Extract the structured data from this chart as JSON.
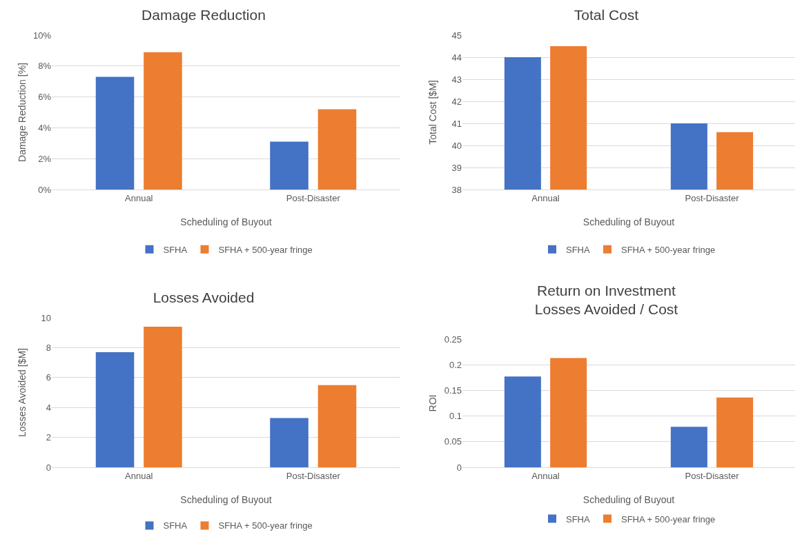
{
  "chart_data": [
    {
      "type": "bar",
      "title": "Damage Reduction",
      "xlabel": "Scheduling of Buyout",
      "ylabel": "Damage Reduction [%]",
      "categories": [
        "Annual",
        "Post-Disaster"
      ],
      "series": [
        {
          "name": "SFHA",
          "color": "#4472c4",
          "values": [
            7.3,
            3.1
          ]
        },
        {
          "name": "SFHA + 500-year fringe",
          "color": "#ed7d31",
          "values": [
            8.9,
            5.2
          ]
        }
      ],
      "ylim": [
        0,
        10
      ],
      "yticks": [
        {
          "value": 0,
          "label": "0%"
        },
        {
          "value": 2,
          "label": "2%"
        },
        {
          "value": 4,
          "label": "4%"
        },
        {
          "value": 6,
          "label": "6%"
        },
        {
          "value": 8,
          "label": "8%"
        },
        {
          "value": 10,
          "label": "10%"
        }
      ],
      "grid": "y",
      "legend": "bottom"
    },
    {
      "type": "bar",
      "title": "Total Cost",
      "xlabel": "Scheduling of Buyout",
      "ylabel": "Total Cost [$M]",
      "categories": [
        "Annual",
        "Post-Disaster"
      ],
      "series": [
        {
          "name": "SFHA",
          "color": "#4472c4",
          "values": [
            44.0,
            41.0
          ]
        },
        {
          "name": "SFHA + 500-year fringe",
          "color": "#ed7d31",
          "values": [
            44.5,
            40.6
          ]
        }
      ],
      "ylim": [
        38,
        45
      ],
      "yticks": [
        38,
        39,
        40,
        41,
        42,
        43,
        44,
        45
      ],
      "grid": "y",
      "legend": "bottom"
    },
    {
      "type": "bar",
      "title": "Losses Avoided",
      "xlabel": "Scheduling of Buyout",
      "ylabel": "Losses Avoided [$M]",
      "categories": [
        "Annual",
        "Post-Disaster"
      ],
      "series": [
        {
          "name": "SFHA",
          "color": "#4472c4",
          "values": [
            7.7,
            3.3
          ]
        },
        {
          "name": "SFHA + 500-year fringe",
          "color": "#ed7d31",
          "values": [
            9.4,
            5.5
          ]
        }
      ],
      "ylim": [
        0,
        10
      ],
      "yticks": [
        0,
        2,
        4,
        6,
        8,
        10
      ],
      "grid": "y",
      "legend": "bottom"
    },
    {
      "type": "bar",
      "title": "Return on Investment\nLosses Avoided / Cost",
      "xlabel": "Scheduling of Buyout",
      "ylabel": "ROI",
      "categories": [
        "Annual",
        "Post-Disaster"
      ],
      "series": [
        {
          "name": "SFHA",
          "color": "#4472c4",
          "values": [
            0.177,
            0.079
          ]
        },
        {
          "name": "SFHA + 500-year fringe",
          "color": "#ed7d31",
          "values": [
            0.213,
            0.136
          ]
        }
      ],
      "ylim": [
        0,
        0.25
      ],
      "yticks": [
        0,
        0.05,
        0.1,
        0.15,
        0.2,
        0.25
      ],
      "grid": "y",
      "legend": "bottom"
    }
  ]
}
